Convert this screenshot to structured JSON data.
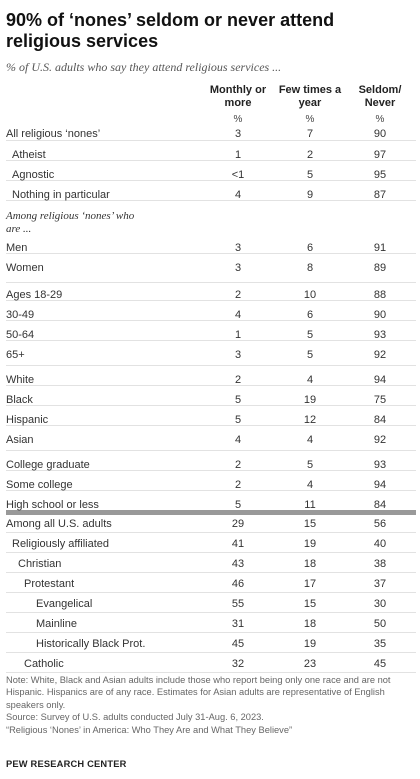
{
  "title": "90% of ‘nones’ seldom or never attend religious services",
  "subtitle": "% of U.S. adults who say they attend religious services ...",
  "columns": [
    {
      "header": "Monthly or more",
      "unit": "%"
    },
    {
      "header": "Few times a year",
      "unit": "%"
    },
    {
      "header": "Seldom/ Never",
      "unit": "%"
    }
  ],
  "group_label": "Among religious ‘nones’ who are ...",
  "chart_data": {
    "type": "table",
    "title": "90% of ‘nones’ seldom or never attend religious services",
    "columns": [
      "Monthly or more",
      "Few times a year",
      "Seldom/ Never"
    ],
    "rows": [
      {
        "label": "All religious ‘nones’",
        "values": [
          "3",
          "7",
          "90"
        ]
      },
      {
        "label": "Atheist",
        "values": [
          "1",
          "2",
          "97"
        ]
      },
      {
        "label": "Agnostic",
        "values": [
          "<1",
          "5",
          "95"
        ]
      },
      {
        "label": "Nothing in particular",
        "values": [
          "4",
          "9",
          "87"
        ]
      },
      {
        "label": "Men",
        "values": [
          "3",
          "6",
          "91"
        ]
      },
      {
        "label": "Women",
        "values": [
          "3",
          "8",
          "89"
        ]
      },
      {
        "label": "Ages 18-29",
        "values": [
          "2",
          "10",
          "88"
        ]
      },
      {
        "label": "30-49",
        "values": [
          "4",
          "6",
          "90"
        ]
      },
      {
        "label": "50-64",
        "values": [
          "1",
          "5",
          "93"
        ]
      },
      {
        "label": "65+",
        "values": [
          "3",
          "5",
          "92"
        ]
      },
      {
        "label": "White",
        "values": [
          "2",
          "4",
          "94"
        ]
      },
      {
        "label": "Black",
        "values": [
          "5",
          "19",
          "75"
        ]
      },
      {
        "label": "Hispanic",
        "values": [
          "5",
          "12",
          "84"
        ]
      },
      {
        "label": "Asian",
        "values": [
          "4",
          "4",
          "92"
        ]
      },
      {
        "label": "College graduate",
        "values": [
          "2",
          "5",
          "93"
        ]
      },
      {
        "label": "Some college",
        "values": [
          "2",
          "4",
          "94"
        ]
      },
      {
        "label": "High school or less",
        "values": [
          "5",
          "11",
          "84"
        ]
      },
      {
        "label": "Among all U.S. adults",
        "values": [
          "29",
          "15",
          "56"
        ]
      },
      {
        "label": "Religiously affiliated",
        "values": [
          "41",
          "19",
          "40"
        ]
      },
      {
        "label": "Christian",
        "values": [
          "43",
          "18",
          "38"
        ]
      },
      {
        "label": "Protestant",
        "values": [
          "46",
          "17",
          "37"
        ]
      },
      {
        "label": "Evangelical",
        "values": [
          "55",
          "15",
          "30"
        ]
      },
      {
        "label": "Mainline",
        "values": [
          "31",
          "18",
          "50"
        ]
      },
      {
        "label": "Historically Black Prot.",
        "values": [
          "45",
          "19",
          "35"
        ]
      },
      {
        "label": "Catholic",
        "values": [
          "32",
          "23",
          "45"
        ]
      }
    ]
  },
  "note": "Note: White, Black and Asian adults include those who report being only one race and are not Hispanic. Hispanics are of any race. Estimates for Asian adults are representative of English speakers only.",
  "source": "Source: Survey of U.S. adults conducted July 31-Aug. 6, 2023.",
  "report": "“Religious ‘Nones’ in America: Who They Are and What They Believe”",
  "credit": "PEW RESEARCH CENTER"
}
